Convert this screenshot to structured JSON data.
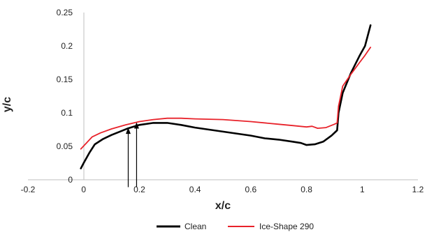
{
  "chart_data": {
    "type": "line",
    "title": "",
    "xlabel": "x/c",
    "ylabel": "y/c",
    "xlim": [
      -0.2,
      1.2
    ],
    "ylim": [
      0,
      0.25
    ],
    "x_ticks": [
      -0.2,
      0,
      0.2,
      0.4,
      0.6,
      0.8,
      1,
      1.2
    ],
    "y_ticks": [
      0,
      0.05,
      0.1,
      0.15,
      0.2,
      0.25
    ],
    "x_tick_labels": [
      "-0.2",
      "0",
      "0.2",
      "0.4",
      "0.6",
      "0.8",
      "1",
      "1.2"
    ],
    "y_tick_labels": [
      "0",
      "0.05",
      "0.1",
      "0.15",
      "0.2",
      "0.25"
    ],
    "grid": false,
    "legend_position": "bottom-center",
    "series": [
      {
        "name": "Clean",
        "color": "#000000",
        "points": [
          [
            -0.01,
            0.017
          ],
          [
            0.0,
            0.025
          ],
          [
            0.02,
            0.04
          ],
          [
            0.04,
            0.053
          ],
          [
            0.07,
            0.061
          ],
          [
            0.1,
            0.067
          ],
          [
            0.13,
            0.072
          ],
          [
            0.16,
            0.077
          ],
          [
            0.2,
            0.082
          ],
          [
            0.25,
            0.085
          ],
          [
            0.3,
            0.085
          ],
          [
            0.35,
            0.082
          ],
          [
            0.4,
            0.078
          ],
          [
            0.5,
            0.072
          ],
          [
            0.6,
            0.066
          ],
          [
            0.65,
            0.062
          ],
          [
            0.7,
            0.06
          ],
          [
            0.75,
            0.057
          ],
          [
            0.78,
            0.055
          ],
          [
            0.8,
            0.052
          ],
          [
            0.83,
            0.053
          ],
          [
            0.86,
            0.057
          ],
          [
            0.89,
            0.066
          ],
          [
            0.91,
            0.074
          ],
          [
            0.915,
            0.1
          ],
          [
            0.93,
            0.13
          ],
          [
            0.96,
            0.16
          ],
          [
            0.99,
            0.185
          ],
          [
            1.01,
            0.2
          ],
          [
            1.03,
            0.231
          ]
        ]
      },
      {
        "name": "Ice-Shape 290",
        "color": "#e8222a",
        "points": [
          [
            -0.01,
            0.046
          ],
          [
            0.01,
            0.055
          ],
          [
            0.03,
            0.064
          ],
          [
            0.06,
            0.07
          ],
          [
            0.1,
            0.076
          ],
          [
            0.15,
            0.082
          ],
          [
            0.2,
            0.087
          ],
          [
            0.25,
            0.09
          ],
          [
            0.3,
            0.092
          ],
          [
            0.35,
            0.092
          ],
          [
            0.4,
            0.091
          ],
          [
            0.5,
            0.09
          ],
          [
            0.6,
            0.087
          ],
          [
            0.7,
            0.083
          ],
          [
            0.75,
            0.081
          ],
          [
            0.8,
            0.079
          ],
          [
            0.82,
            0.08
          ],
          [
            0.84,
            0.077
          ],
          [
            0.87,
            0.078
          ],
          [
            0.9,
            0.083
          ],
          [
            0.91,
            0.085
          ],
          [
            0.915,
            0.11
          ],
          [
            0.93,
            0.14
          ],
          [
            0.96,
            0.158
          ],
          [
            0.99,
            0.175
          ],
          [
            1.01,
            0.186
          ],
          [
            1.03,
            0.198
          ]
        ]
      }
    ],
    "annotations": [
      {
        "type": "arrow",
        "from": [
          0.16,
          -0.011
        ],
        "to": [
          0.16,
          0.078
        ]
      },
      {
        "type": "arrow",
        "from": [
          0.19,
          -0.011
        ],
        "to": [
          0.19,
          0.086
        ]
      }
    ]
  }
}
